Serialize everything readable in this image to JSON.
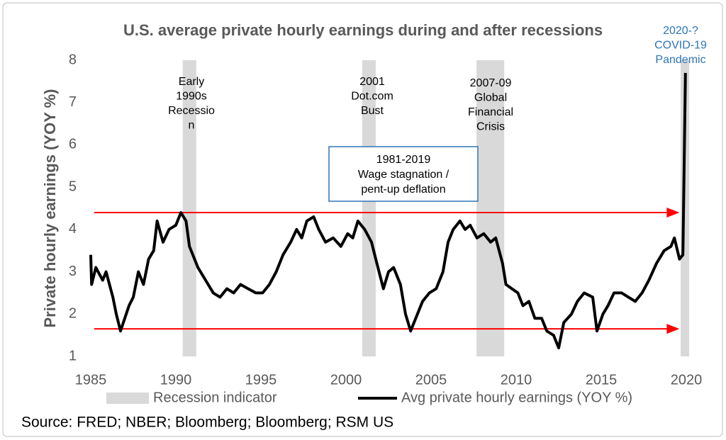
{
  "chart_data": {
    "type": "line",
    "title": "U.S. average private hourly earnings during and after recessions",
    "ylabel": "Private hourly earnings (YOY %)",
    "xlim": [
      1985,
      2020.3
    ],
    "xticks": [
      1985,
      1990,
      1995,
      2000,
      2005,
      2010,
      2015,
      2020
    ],
    "ylim": [
      1,
      8
    ],
    "yticks": [
      1,
      2,
      3,
      4,
      5,
      6,
      7,
      8
    ],
    "recessions": {
      "name": "Recession indicator",
      "color": "#d9d9d9",
      "periods": [
        [
          1990.4,
          1991.2
        ],
        [
          2000.95,
          2001.75
        ],
        [
          2007.67,
          2009.3
        ],
        [
          2019.67,
          2020.17
        ]
      ],
      "labels": [
        [
          "Early",
          "1990s",
          "Recessio",
          "n"
        ],
        [
          "2001",
          "Dot.com",
          "Bust"
        ],
        [
          "2007-09",
          "Global",
          "Financial",
          "Crisis"
        ],
        [
          "2020-?",
          "COVID-19",
          "Pandemic"
        ]
      ],
      "label_colors": [
        "#000000",
        "#000000",
        "#000000",
        "#2e75b6"
      ]
    },
    "series": [
      {
        "name": "Avg private hourly earnings (YOY %)",
        "color": "#000000",
        "x": [
          1985.0,
          1985.05,
          1985.3,
          1985.7,
          1985.9,
          1986.3,
          1986.5,
          1986.75,
          1987.0,
          1987.25,
          1987.5,
          1987.8,
          1988.1,
          1988.4,
          1988.7,
          1988.9,
          1989.25,
          1989.6,
          1990.0,
          1990.3,
          1990.6,
          1990.8,
          1991.0,
          1991.3,
          1991.75,
          1992.2,
          1992.6,
          1993.0,
          1993.4,
          1993.8,
          1994.25,
          1994.7,
          1995.1,
          1995.5,
          1995.9,
          1996.3,
          1996.75,
          1997.1,
          1997.4,
          1997.7,
          1998.1,
          1998.4,
          1998.8,
          1999.25,
          1999.7,
          2000.1,
          2000.4,
          2000.7,
          2001.1,
          2001.5,
          2001.75,
          2002.2,
          2002.5,
          2002.8,
          2003.2,
          2003.5,
          2003.8,
          2004.2,
          2004.5,
          2004.9,
          2005.3,
          2005.7,
          2006.0,
          2006.3,
          2006.7,
          2007.0,
          2007.3,
          2007.7,
          2008.1,
          2008.5,
          2008.8,
          2009.2,
          2009.4,
          2009.75,
          2010.1,
          2010.4,
          2010.75,
          2011.1,
          2011.5,
          2011.8,
          2012.2,
          2012.5,
          2012.8,
          2013.25,
          2013.6,
          2014.0,
          2014.5,
          2014.75,
          2015.1,
          2015.4,
          2015.75,
          2016.2,
          2016.6,
          2017.0,
          2017.4,
          2017.8,
          2018.25,
          2018.7,
          2019.1,
          2019.3,
          2019.6,
          2019.8,
          2019.95
        ],
        "values": [
          3.4,
          2.7,
          3.1,
          2.8,
          3.0,
          2.4,
          2.0,
          1.6,
          1.9,
          2.2,
          2.4,
          3.0,
          2.7,
          3.3,
          3.5,
          4.2,
          3.7,
          4.0,
          4.1,
          4.4,
          4.2,
          3.6,
          3.4,
          3.1,
          2.8,
          2.5,
          2.4,
          2.6,
          2.5,
          2.7,
          2.6,
          2.5,
          2.5,
          2.7,
          3.0,
          3.4,
          3.7,
          4.0,
          3.8,
          4.2,
          4.3,
          4.0,
          3.7,
          3.8,
          3.6,
          3.9,
          3.8,
          4.2,
          4.0,
          3.7,
          3.3,
          2.6,
          3.0,
          3.1,
          2.7,
          2.0,
          1.6,
          2.0,
          2.3,
          2.5,
          2.6,
          3.0,
          3.7,
          4.0,
          4.2,
          4.0,
          4.1,
          3.8,
          3.9,
          3.7,
          3.8,
          3.2,
          2.7,
          2.6,
          2.5,
          2.2,
          2.3,
          1.9,
          1.9,
          1.6,
          1.5,
          1.2,
          1.8,
          2.0,
          2.3,
          2.5,
          2.4,
          1.6,
          2.0,
          2.2,
          2.5,
          2.5,
          2.4,
          2.3,
          2.5,
          2.8,
          3.2,
          3.5,
          3.6,
          3.8,
          3.3,
          3.4,
          7.7
        ]
      }
    ],
    "reference_arrows": [
      {
        "value": 4.4,
        "x": [
          1985.2,
          2019.6
        ],
        "color": "#ff0000"
      },
      {
        "value": 1.65,
        "x": [
          1985.2,
          2019.6
        ],
        "color": "#ff0000"
      }
    ],
    "annotation": {
      "lines": [
        "1981-2019",
        "Wage stagnation /",
        "pent-up deflation"
      ],
      "border_color": "#2e75b6"
    },
    "source": "Source: FRED; NBER; Bloomberg; Bloomberg; RSM US"
  }
}
